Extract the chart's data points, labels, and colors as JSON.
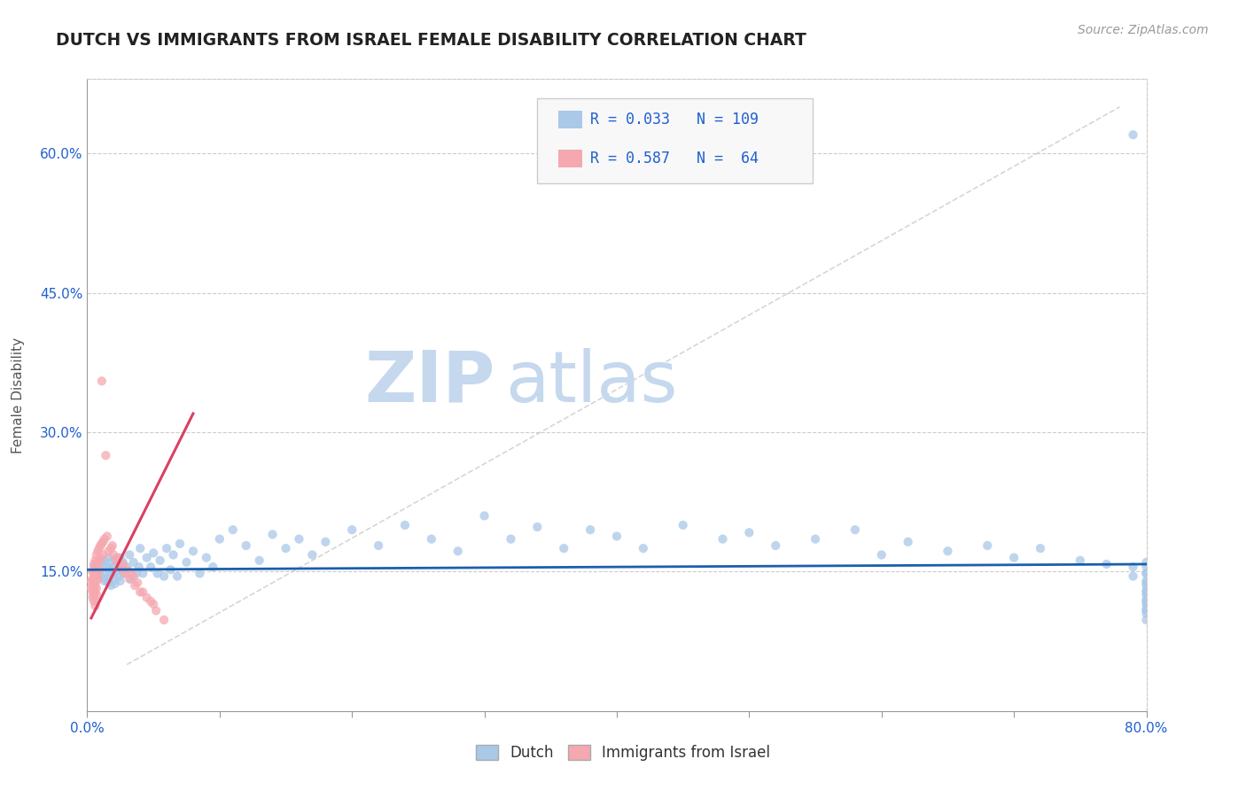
{
  "title": "DUTCH VS IMMIGRANTS FROM ISRAEL FEMALE DISABILITY CORRELATION CHART",
  "source_text": "Source: ZipAtlas.com",
  "ylabel": "Female Disability",
  "xlim": [
    0.0,
    0.8
  ],
  "ylim": [
    0.0,
    0.68
  ],
  "xticks": [
    0.0,
    0.1,
    0.2,
    0.3,
    0.4,
    0.5,
    0.6,
    0.7,
    0.8
  ],
  "xtick_labels": [
    "0.0%",
    "",
    "",
    "",
    "",
    "",
    "",
    "",
    "80.0%"
  ],
  "ytick_positions": [
    0.15,
    0.3,
    0.45,
    0.6
  ],
  "ytick_labels": [
    "15.0%",
    "30.0%",
    "45.0%",
    "60.0%"
  ],
  "dutch_R": 0.033,
  "dutch_N": 109,
  "israel_R": 0.587,
  "israel_N": 64,
  "dutch_color": "#aac8e8",
  "israel_color": "#f5a8b0",
  "dutch_line_color": "#1a5fad",
  "israel_line_color": "#d94060",
  "watermark_zip": "ZIP",
  "watermark_atlas": "atlas",
  "watermark_color_zip": "#c5d8ee",
  "watermark_color_atlas": "#c5d8ee",
  "legend_color": "#2060d0",
  "dutch_scatter_x": [
    0.005,
    0.007,
    0.008,
    0.01,
    0.01,
    0.012,
    0.012,
    0.013,
    0.013,
    0.015,
    0.015,
    0.016,
    0.016,
    0.017,
    0.017,
    0.018,
    0.018,
    0.019,
    0.02,
    0.02,
    0.021,
    0.021,
    0.022,
    0.023,
    0.024,
    0.025,
    0.025,
    0.026,
    0.027,
    0.028,
    0.03,
    0.032,
    0.033,
    0.035,
    0.037,
    0.039,
    0.04,
    0.042,
    0.045,
    0.048,
    0.05,
    0.053,
    0.055,
    0.058,
    0.06,
    0.063,
    0.065,
    0.068,
    0.07,
    0.075,
    0.08,
    0.085,
    0.09,
    0.095,
    0.1,
    0.11,
    0.12,
    0.13,
    0.14,
    0.15,
    0.16,
    0.17,
    0.18,
    0.2,
    0.22,
    0.24,
    0.26,
    0.28,
    0.3,
    0.32,
    0.34,
    0.36,
    0.38,
    0.4,
    0.42,
    0.45,
    0.48,
    0.5,
    0.52,
    0.55,
    0.58,
    0.6,
    0.62,
    0.65,
    0.68,
    0.7,
    0.72,
    0.75,
    0.77,
    0.79,
    0.79,
    0.79,
    0.8,
    0.8,
    0.8,
    0.8,
    0.8,
    0.8,
    0.8,
    0.8,
    0.8,
    0.8,
    0.8,
    0.8,
    0.8,
    0.8,
    0.8,
    0.8,
    0.8
  ],
  "dutch_scatter_y": [
    0.155,
    0.15,
    0.148,
    0.16,
    0.145,
    0.158,
    0.143,
    0.162,
    0.14,
    0.155,
    0.148,
    0.165,
    0.138,
    0.152,
    0.145,
    0.16,
    0.135,
    0.148,
    0.155,
    0.142,
    0.163,
    0.137,
    0.15,
    0.158,
    0.145,
    0.165,
    0.14,
    0.152,
    0.16,
    0.148,
    0.155,
    0.168,
    0.142,
    0.16,
    0.148,
    0.155,
    0.175,
    0.148,
    0.165,
    0.155,
    0.17,
    0.148,
    0.162,
    0.145,
    0.175,
    0.152,
    0.168,
    0.145,
    0.18,
    0.16,
    0.172,
    0.148,
    0.165,
    0.155,
    0.185,
    0.195,
    0.178,
    0.162,
    0.19,
    0.175,
    0.185,
    0.168,
    0.182,
    0.195,
    0.178,
    0.2,
    0.185,
    0.172,
    0.21,
    0.185,
    0.198,
    0.175,
    0.195,
    0.188,
    0.175,
    0.2,
    0.185,
    0.192,
    0.178,
    0.185,
    0.195,
    0.168,
    0.182,
    0.172,
    0.178,
    0.165,
    0.175,
    0.162,
    0.158,
    0.62,
    0.155,
    0.145,
    0.135,
    0.125,
    0.115,
    0.105,
    0.11,
    0.12,
    0.13,
    0.14,
    0.148,
    0.155,
    0.16,
    0.148,
    0.138,
    0.128,
    0.118,
    0.108,
    0.098
  ],
  "israel_scatter_x": [
    0.003,
    0.003,
    0.004,
    0.004,
    0.004,
    0.004,
    0.004,
    0.005,
    0.005,
    0.005,
    0.005,
    0.005,
    0.005,
    0.006,
    0.006,
    0.006,
    0.006,
    0.006,
    0.006,
    0.006,
    0.007,
    0.007,
    0.007,
    0.007,
    0.007,
    0.007,
    0.008,
    0.008,
    0.008,
    0.008,
    0.009,
    0.009,
    0.009,
    0.01,
    0.01,
    0.011,
    0.011,
    0.012,
    0.012,
    0.013,
    0.014,
    0.015,
    0.016,
    0.018,
    0.02,
    0.022,
    0.025,
    0.028,
    0.032,
    0.036,
    0.04,
    0.045,
    0.05,
    0.03,
    0.035,
    0.019,
    0.023,
    0.027,
    0.033,
    0.038,
    0.042,
    0.048,
    0.052,
    0.058
  ],
  "israel_scatter_y": [
    0.14,
    0.132,
    0.15,
    0.142,
    0.135,
    0.128,
    0.122,
    0.158,
    0.148,
    0.14,
    0.132,
    0.125,
    0.118,
    0.162,
    0.152,
    0.143,
    0.135,
    0.128,
    0.12,
    0.113,
    0.168,
    0.158,
    0.148,
    0.14,
    0.132,
    0.125,
    0.172,
    0.16,
    0.15,
    0.142,
    0.175,
    0.162,
    0.152,
    0.178,
    0.165,
    0.18,
    0.355,
    0.182,
    0.168,
    0.185,
    0.275,
    0.188,
    0.172,
    0.175,
    0.168,
    0.162,
    0.155,
    0.148,
    0.142,
    0.135,
    0.128,
    0.122,
    0.115,
    0.152,
    0.145,
    0.178,
    0.165,
    0.158,
    0.148,
    0.138,
    0.128,
    0.118,
    0.108,
    0.098
  ],
  "trend_line_color": "#cccccc",
  "israel_trend_x": [
    0.003,
    0.08
  ],
  "israel_trend_y": [
    0.1,
    0.32
  ],
  "dutch_trend_x": [
    0.0,
    0.8
  ],
  "dutch_trend_y": [
    0.152,
    0.158
  ]
}
